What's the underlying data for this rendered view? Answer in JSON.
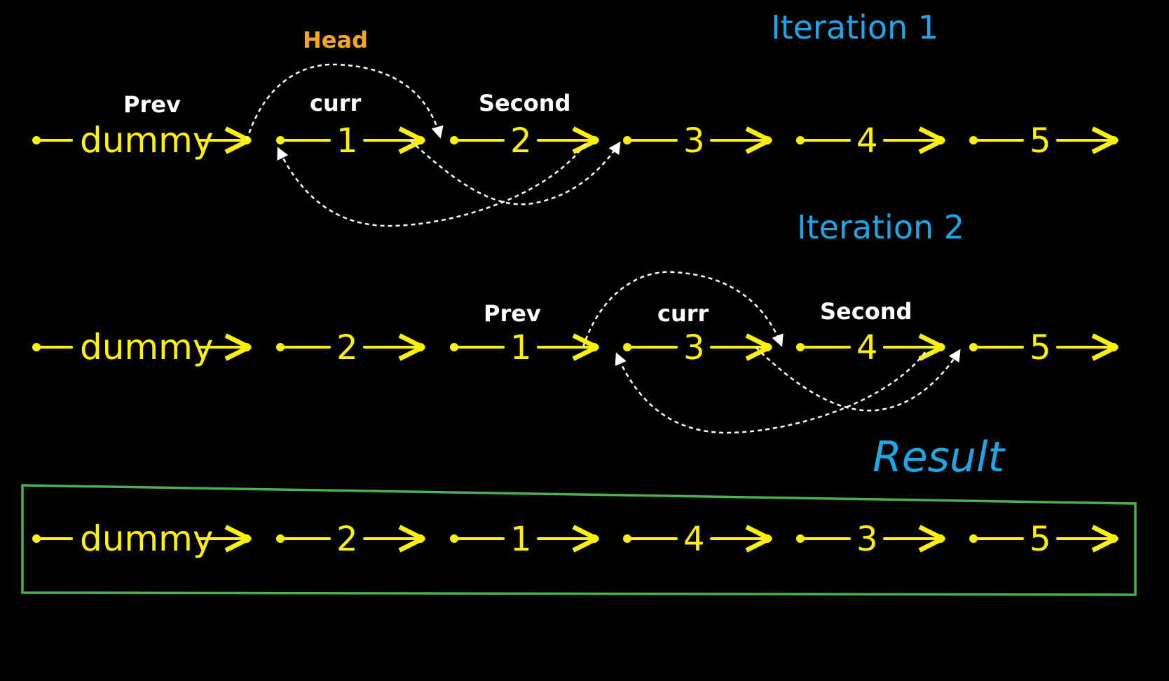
{
  "colors": {
    "background": "#000000",
    "node": "#FFF200",
    "pointer_label": "#FFFFFF",
    "head_label": "#F5A623",
    "iteration_label": "#1EA7E6",
    "result_box": "#4CAF50",
    "curve": "#FFFFFF"
  },
  "iteration1": {
    "title": "Iteration 1",
    "head_label": "Head",
    "prev_label": "Prev",
    "curr_label": "curr",
    "second_label": "Second",
    "nodes": [
      "dummy",
      "1",
      "2",
      "3",
      "4",
      "5"
    ]
  },
  "iteration2": {
    "title": "Iteration 2",
    "prev_label": "Prev",
    "curr_label": "curr",
    "second_label": "Second",
    "nodes": [
      "dummy",
      "2",
      "1",
      "3",
      "4",
      "5"
    ]
  },
  "result": {
    "title": "Result",
    "nodes": [
      "dummy",
      "2",
      "1",
      "4",
      "3",
      "5"
    ]
  }
}
